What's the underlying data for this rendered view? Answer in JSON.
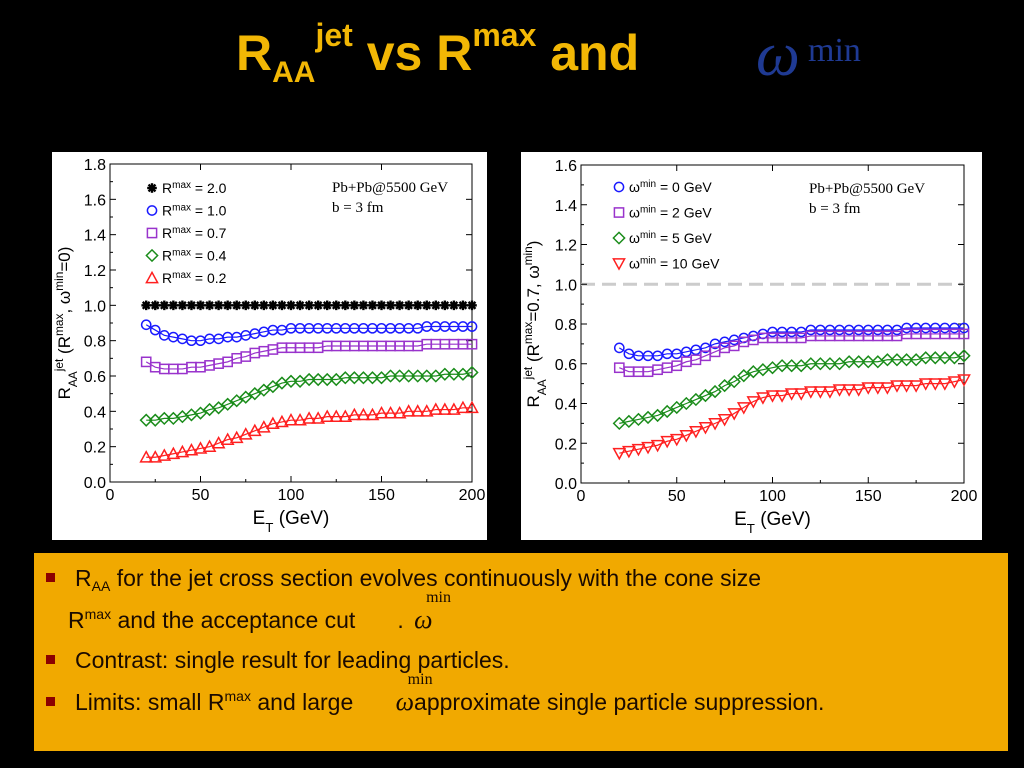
{
  "slide": {
    "title": {
      "p1": "R",
      "p1_sub": "AA",
      "p1_sup": "jet",
      "p2": " vs R",
      "p2_sup": "max",
      "p3": " and",
      "omega": "ω",
      "omega_sup": "min"
    },
    "bullets": {
      "b1_a": "R",
      "b1_sub": "AA",
      "b1_b": " for the jet cross section evolves continuously with the cone size",
      "b1_c": "R",
      "b1_sup": "max",
      "b1_d": " and the acceptance cut",
      "b1_e": ".",
      "b2": "Contrast: single result for leading particles.",
      "b3_a": "Limits: small R",
      "b3_sup": "max",
      "b3_b": " and large",
      "b3_c": "approximate single particle suppression.",
      "omega": "ω",
      "omega_sup": "min"
    },
    "colors": {
      "title": "#f2b705",
      "omega": "#1f3a93",
      "box": "#f1a900",
      "bullet_marker": "#8b0000"
    }
  },
  "chart_data": [
    {
      "type": "scatter",
      "xlabel": "E_T (GeV)",
      "ylabel": "R_AA^jet (R^max, ω^min=0)",
      "xlim": [
        0,
        200
      ],
      "ylim": [
        0,
        1.8
      ],
      "xticks": [
        "0",
        "50",
        "100",
        "150",
        "200"
      ],
      "yticks": [
        "0.0",
        "0.2",
        "0.4",
        "0.6",
        "0.8",
        "1.0",
        "1.2",
        "1.4",
        "1.6",
        "1.8"
      ],
      "annotation": [
        "Pb+Pb@5500 GeV",
        "b = 3 fm"
      ],
      "legend_position": "top-left",
      "x": [
        20,
        25,
        30,
        35,
        40,
        45,
        50,
        55,
        60,
        65,
        70,
        75,
        80,
        85,
        90,
        95,
        100,
        105,
        110,
        115,
        120,
        125,
        130,
        135,
        140,
        145,
        150,
        155,
        160,
        165,
        170,
        175,
        180,
        185,
        190,
        195,
        200
      ],
      "series": [
        {
          "name": "R^max = 2.0",
          "marker": "star",
          "color": "#000000",
          "values": [
            1.0,
            1.0,
            1.0,
            1.0,
            1.0,
            1.0,
            1.0,
            1.0,
            1.0,
            1.0,
            1.0,
            1.0,
            1.0,
            1.0,
            1.0,
            1.0,
            1.0,
            1.0,
            1.0,
            1.0,
            1.0,
            1.0,
            1.0,
            1.0,
            1.0,
            1.0,
            1.0,
            1.0,
            1.0,
            1.0,
            1.0,
            1.0,
            1.0,
            1.0,
            1.0,
            1.0,
            1.0
          ]
        },
        {
          "name": "R^max = 1.0",
          "marker": "circle",
          "color": "#1a1aff",
          "values": [
            0.89,
            0.86,
            0.83,
            0.82,
            0.81,
            0.8,
            0.8,
            0.81,
            0.81,
            0.82,
            0.82,
            0.83,
            0.84,
            0.85,
            0.86,
            0.86,
            0.87,
            0.87,
            0.87,
            0.87,
            0.87,
            0.87,
            0.87,
            0.87,
            0.87,
            0.87,
            0.87,
            0.87,
            0.87,
            0.87,
            0.87,
            0.88,
            0.88,
            0.88,
            0.88,
            0.88,
            0.88
          ]
        },
        {
          "name": "R^max = 0.7",
          "marker": "square",
          "color": "#9933cc",
          "values": [
            0.68,
            0.65,
            0.64,
            0.64,
            0.64,
            0.65,
            0.65,
            0.66,
            0.67,
            0.68,
            0.7,
            0.71,
            0.73,
            0.74,
            0.75,
            0.76,
            0.76,
            0.76,
            0.76,
            0.76,
            0.77,
            0.77,
            0.77,
            0.77,
            0.77,
            0.77,
            0.77,
            0.77,
            0.77,
            0.77,
            0.77,
            0.78,
            0.78,
            0.78,
            0.78,
            0.78,
            0.78
          ]
        },
        {
          "name": "R^max = 0.4",
          "marker": "diamond",
          "color": "#1a8c1a",
          "values": [
            0.35,
            0.35,
            0.36,
            0.36,
            0.37,
            0.38,
            0.39,
            0.41,
            0.42,
            0.44,
            0.46,
            0.48,
            0.5,
            0.52,
            0.54,
            0.56,
            0.57,
            0.57,
            0.58,
            0.58,
            0.58,
            0.58,
            0.59,
            0.59,
            0.59,
            0.59,
            0.59,
            0.6,
            0.6,
            0.6,
            0.6,
            0.6,
            0.6,
            0.61,
            0.61,
            0.61,
            0.62
          ]
        },
        {
          "name": "R^max = 0.2",
          "marker": "triangle-up",
          "color": "#ff2020",
          "values": [
            0.14,
            0.14,
            0.15,
            0.16,
            0.17,
            0.18,
            0.19,
            0.2,
            0.22,
            0.24,
            0.25,
            0.27,
            0.29,
            0.31,
            0.33,
            0.34,
            0.35,
            0.35,
            0.36,
            0.36,
            0.37,
            0.37,
            0.37,
            0.38,
            0.38,
            0.38,
            0.39,
            0.39,
            0.39,
            0.4,
            0.4,
            0.4,
            0.41,
            0.41,
            0.41,
            0.42,
            0.42
          ]
        }
      ]
    },
    {
      "type": "scatter",
      "xlabel": "E_T (GeV)",
      "ylabel": "R_AA^jet (R^max=0.7, ω^min)",
      "xlim": [
        0,
        200
      ],
      "ylim": [
        0,
        1.6
      ],
      "xticks": [
        "0",
        "50",
        "100",
        "150",
        "200"
      ],
      "yticks": [
        "0.0",
        "0.2",
        "0.4",
        "0.6",
        "0.8",
        "1.0",
        "1.2",
        "1.4",
        "1.6"
      ],
      "annotation": [
        "Pb+Pb@5500 GeV",
        "b = 3 fm"
      ],
      "legend_position": "top-left",
      "reference_line": 1.0,
      "x": [
        20,
        25,
        30,
        35,
        40,
        45,
        50,
        55,
        60,
        65,
        70,
        75,
        80,
        85,
        90,
        95,
        100,
        105,
        110,
        115,
        120,
        125,
        130,
        135,
        140,
        145,
        150,
        155,
        160,
        165,
        170,
        175,
        180,
        185,
        190,
        195,
        200
      ],
      "series": [
        {
          "name": "ω^min = 0 GeV",
          "marker": "circle",
          "color": "#1a1aff",
          "values": [
            0.68,
            0.65,
            0.64,
            0.64,
            0.64,
            0.65,
            0.65,
            0.66,
            0.67,
            0.68,
            0.7,
            0.71,
            0.72,
            0.73,
            0.74,
            0.75,
            0.76,
            0.76,
            0.76,
            0.76,
            0.77,
            0.77,
            0.77,
            0.77,
            0.77,
            0.77,
            0.77,
            0.77,
            0.77,
            0.77,
            0.78,
            0.78,
            0.78,
            0.78,
            0.78,
            0.78,
            0.78
          ]
        },
        {
          "name": "ω^min = 2 GeV",
          "marker": "square",
          "color": "#9933cc",
          "values": [
            0.58,
            0.56,
            0.56,
            0.56,
            0.57,
            0.58,
            0.59,
            0.61,
            0.62,
            0.64,
            0.66,
            0.68,
            0.69,
            0.71,
            0.72,
            0.73,
            0.73,
            0.73,
            0.73,
            0.73,
            0.74,
            0.74,
            0.74,
            0.74,
            0.74,
            0.74,
            0.74,
            0.74,
            0.74,
            0.74,
            0.75,
            0.75,
            0.75,
            0.75,
            0.75,
            0.75,
            0.75
          ]
        },
        {
          "name": "ω^min = 5 GeV",
          "marker": "diamond",
          "color": "#1a8c1a",
          "values": [
            0.3,
            0.31,
            0.32,
            0.33,
            0.34,
            0.36,
            0.38,
            0.4,
            0.42,
            0.44,
            0.46,
            0.49,
            0.51,
            0.54,
            0.56,
            0.57,
            0.58,
            0.59,
            0.59,
            0.59,
            0.6,
            0.6,
            0.6,
            0.6,
            0.61,
            0.61,
            0.61,
            0.61,
            0.62,
            0.62,
            0.62,
            0.62,
            0.63,
            0.63,
            0.63,
            0.63,
            0.64
          ]
        },
        {
          "name": "ω^min = 10 GeV",
          "marker": "triangle-down",
          "color": "#ff2020",
          "values": [
            0.15,
            0.16,
            0.17,
            0.18,
            0.19,
            0.21,
            0.22,
            0.24,
            0.26,
            0.28,
            0.3,
            0.32,
            0.35,
            0.38,
            0.41,
            0.43,
            0.44,
            0.44,
            0.45,
            0.45,
            0.46,
            0.46,
            0.46,
            0.47,
            0.47,
            0.47,
            0.48,
            0.48,
            0.48,
            0.49,
            0.49,
            0.49,
            0.5,
            0.5,
            0.5,
            0.51,
            0.52
          ]
        }
      ]
    }
  ]
}
